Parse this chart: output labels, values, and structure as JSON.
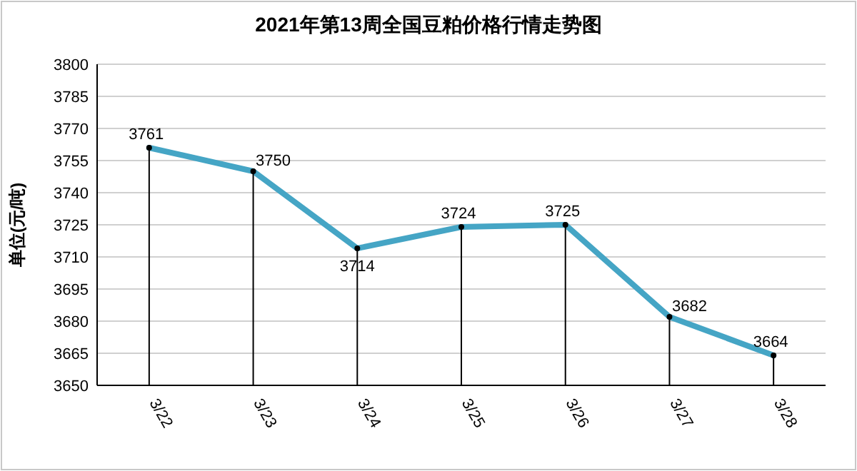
{
  "chart_data": {
    "type": "line",
    "title": "2021年第13周全国豆粕价格行情走势图",
    "ylabel": "单位(元/吨)",
    "categories": [
      "3/22",
      "3/23",
      "3/24",
      "3/25",
      "3/26",
      "3/27",
      "3/28"
    ],
    "ylim": [
      3650,
      3800
    ],
    "yticks": [
      3650,
      3665,
      3680,
      3695,
      3710,
      3725,
      3740,
      3755,
      3770,
      3785,
      3800
    ],
    "grid": "y",
    "series": [
      {
        "color": "#45a5c5",
        "marker": "none",
        "line_style": "solid",
        "values": [
          3761,
          3750,
          3714,
          3724,
          3725,
          3682,
          3664
        ],
        "value_labels": [
          "3761",
          "3750",
          "3714",
          "3724",
          "3725",
          "3682",
          "3664"
        ]
      },
      {
        "type": "lollipop",
        "color": "#000000",
        "marker": "circle",
        "values": [
          3761,
          3750,
          3714,
          3724,
          3725,
          3682,
          3664
        ]
      }
    ]
  }
}
